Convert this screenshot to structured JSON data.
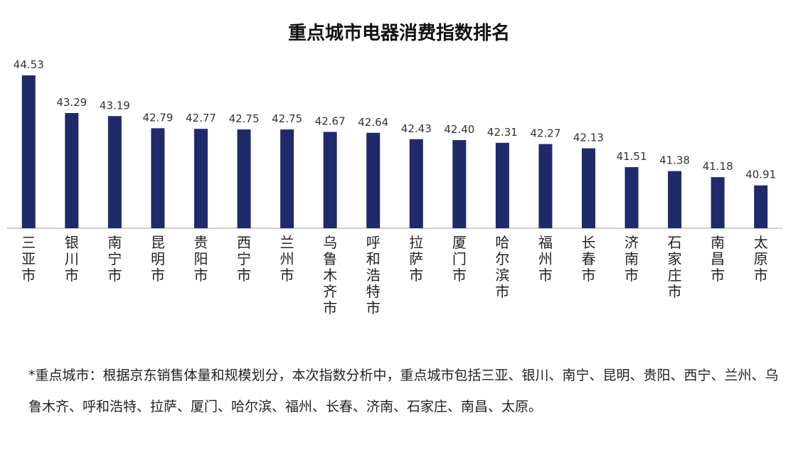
{
  "chart_data": {
    "type": "bar",
    "title": "重点城市电器消费指数排名",
    "categories": [
      "三亚市",
      "银川市",
      "南宁市",
      "昆明市",
      "贵阳市",
      "西宁市",
      "兰州市",
      "乌鲁木齐市",
      "呼和浩特市",
      "拉萨市",
      "厦门市",
      "哈尔滨市",
      "福州市",
      "长春市",
      "济南市",
      "石家庄市",
      "南昌市",
      "太原市"
    ],
    "values": [
      44.53,
      43.29,
      43.19,
      42.79,
      42.77,
      42.75,
      42.75,
      42.67,
      42.64,
      42.43,
      42.4,
      42.31,
      42.27,
      42.13,
      41.51,
      41.38,
      41.18,
      40.91
    ],
    "value_labels": [
      "44.53",
      "43.29",
      "43.19",
      "42.79",
      "42.77",
      "42.75",
      "42.75",
      "42.67",
      "42.64",
      "42.43",
      "42.40",
      "42.31",
      "42.27",
      "42.13",
      "41.51",
      "41.38",
      "41.18",
      "40.91"
    ],
    "xlabel": "",
    "ylabel": "",
    "ylim": [
      39.5,
      44.6
    ],
    "grid": false,
    "bar_color": "#1f2a6b",
    "axis_color": "#bfbfbf"
  },
  "footnote": "*重点城市：根据京东销售体量和规模划分，本次指数分析中，重点城市包括三亚、银川、南宁、昆明、贵阳、西宁、兰州、乌鲁木齐、呼和浩特、拉萨、厦门、哈尔滨、福州、长春、济南、石家庄、南昌、太原。"
}
